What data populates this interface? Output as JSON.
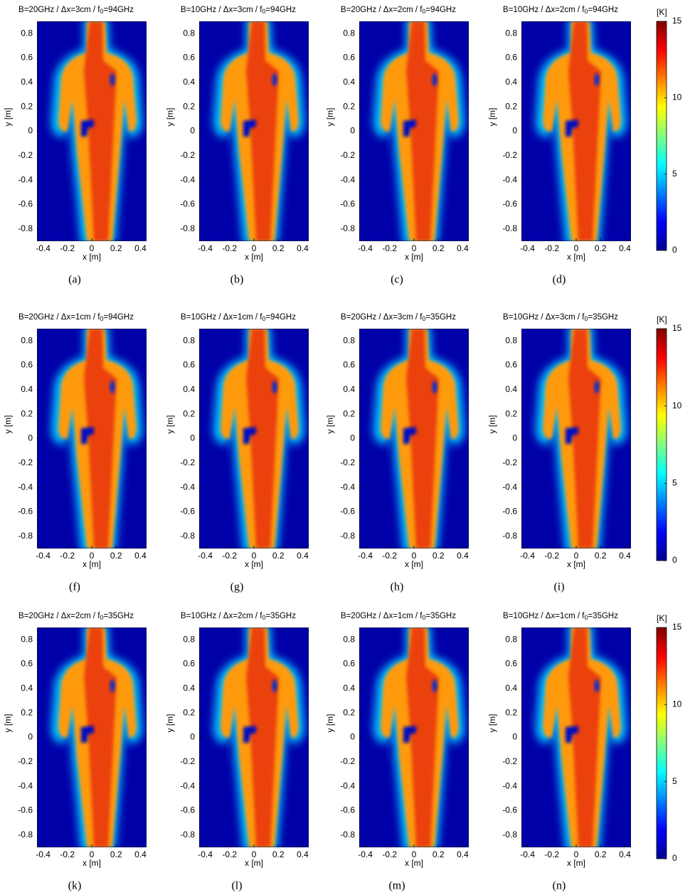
{
  "figure": {
    "panels": [
      {
        "title": {
          "text": "B=20GHz / Δx=3cm / f",
          "sub": "0",
          "tail": "=94GHz"
        },
        "caption": "(a)"
      },
      {
        "title": {
          "text": "B=10GHz / Δx=3cm / f",
          "sub": "0",
          "tail": "=94GHz"
        },
        "caption": "(b)"
      },
      {
        "title": {
          "text": "B=20GHz / Δx=2cm / f",
          "sub": "0",
          "tail": "=94GHz"
        },
        "caption": "(c)"
      },
      {
        "title": {
          "text": "B=10GHz / Δx=2cm / f",
          "sub": "0",
          "tail": "=94GHz"
        },
        "caption": "(d)"
      },
      {
        "title": {
          "text": "B=20GHz / Δx=1cm / f",
          "sub": "0",
          "tail": "=94GHz"
        },
        "caption": "(f)"
      },
      {
        "title": {
          "text": "B=10GHz / Δx=1cm / f",
          "sub": "0",
          "tail": "=94GHz"
        },
        "caption": "(g)"
      },
      {
        "title": {
          "text": "B=20GHz / Δx=3cm / f",
          "sub": "0",
          "tail": "=35GHz"
        },
        "caption": "(h)"
      },
      {
        "title": {
          "text": "B=10GHz / Δx=3cm / f",
          "sub": "0",
          "tail": "=35GHz"
        },
        "caption": "(i)"
      },
      {
        "title": {
          "text": "B=20GHz / Δx=2cm / f",
          "sub": "0",
          "tail": "=35GHz"
        },
        "caption": "(k)"
      },
      {
        "title": {
          "text": "B=10GHz / Δx=2cm / f",
          "sub": "0",
          "tail": "=35GHz"
        },
        "caption": "(l)"
      },
      {
        "title": {
          "text": "B=20GHz / Δx=1cm / f",
          "sub": "0",
          "tail": "=35GHz"
        },
        "caption": "(m)"
      },
      {
        "title": {
          "text": "B=10GHz / Δx=1cm / f",
          "sub": "0",
          "tail": "=35GHz"
        },
        "caption": "(n)"
      }
    ],
    "xlabel": "x [m]",
    "ylabel": "y [m]",
    "xlim": [
      -0.45,
      0.45
    ],
    "ylim": [
      -0.9,
      0.9
    ],
    "xticks": [
      -0.4,
      -0.2,
      0,
      0.2,
      0.4
    ],
    "yticks": [
      0.8,
      0.6,
      0.4,
      0.2,
      0,
      -0.2,
      -0.4,
      -0.6,
      -0.8
    ],
    "colorbar": {
      "label": "[K]",
      "clim": [
        0,
        15
      ],
      "ticks": [
        0,
        5,
        10,
        15
      ],
      "colormap": [
        "#00008f",
        "#0000ff",
        "#0080ff",
        "#00ffff",
        "#80ff80",
        "#ffff00",
        "#ff8000",
        "#ff0000",
        "#800000"
      ]
    }
  }
}
